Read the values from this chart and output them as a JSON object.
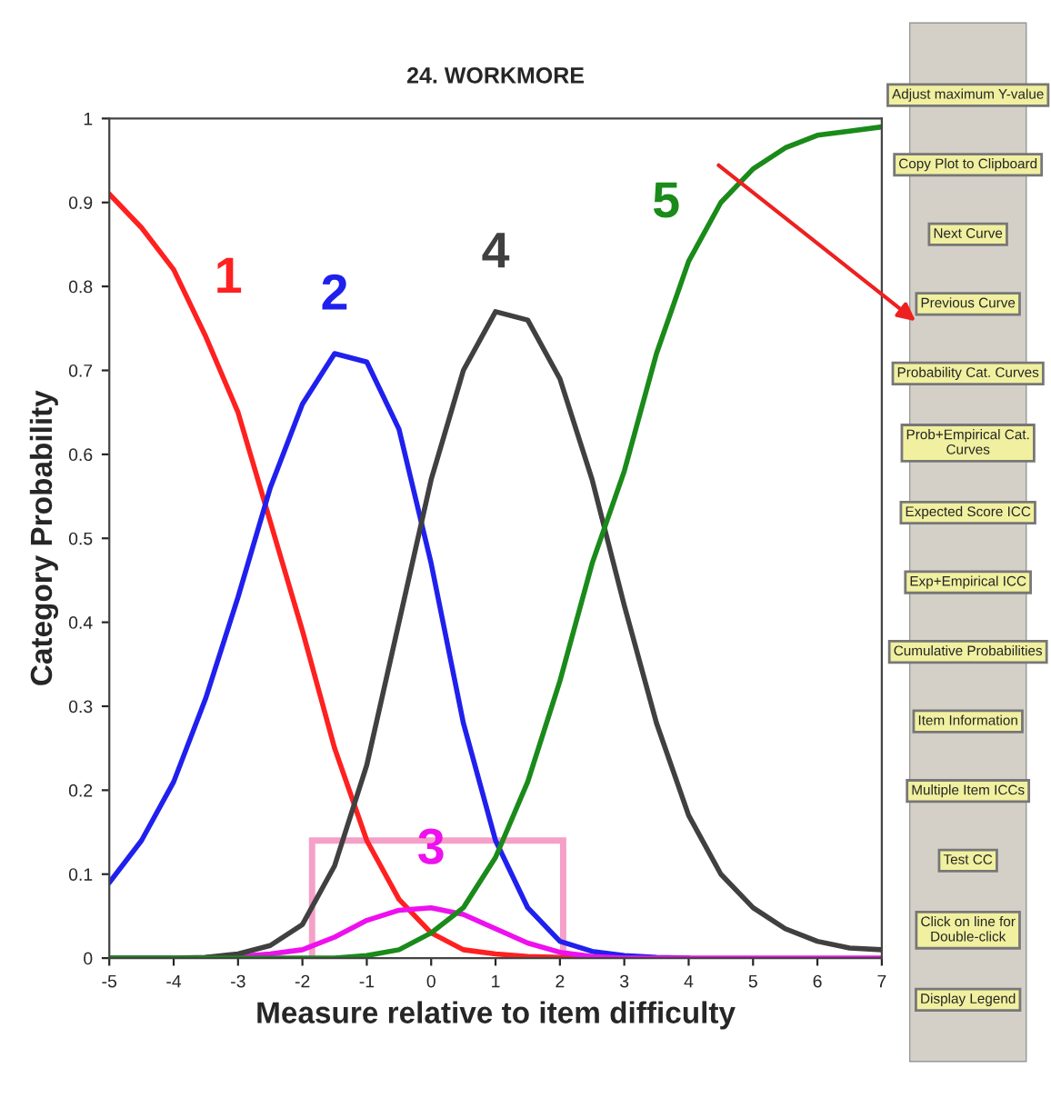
{
  "chart_data": {
    "type": "line",
    "title": "24. WORKMORE",
    "xlabel": "Measure relative to item difficulty",
    "ylabel": "Category Probability",
    "x": [
      -5,
      -4.5,
      -4,
      -3.5,
      -3,
      -2.5,
      -2,
      -1.5,
      -1,
      -0.5,
      0,
      0.5,
      1,
      1.5,
      2,
      2.5,
      3,
      3.5,
      4,
      4.5,
      5,
      5.5,
      6,
      6.5,
      7
    ],
    "series": [
      {
        "name": "1",
        "color": "#ff2020",
        "values": [
          0.91,
          0.87,
          0.82,
          0.74,
          0.65,
          0.52,
          0.39,
          0.25,
          0.14,
          0.07,
          0.03,
          0.01,
          0.005,
          0.002,
          0.001,
          0,
          0,
          null,
          null,
          null,
          null,
          null,
          null,
          null,
          null
        ]
      },
      {
        "name": "2",
        "color": "#2020ee",
        "values": [
          0.09,
          0.14,
          0.21,
          0.31,
          0.43,
          0.56,
          0.66,
          0.72,
          0.71,
          0.63,
          0.47,
          0.28,
          0.14,
          0.06,
          0.02,
          0.008,
          0.003,
          0.001,
          0,
          null,
          null,
          null,
          null,
          null,
          null
        ]
      },
      {
        "name": "3",
        "color": "#ee10ee",
        "values": [
          null,
          null,
          null,
          0.001,
          0.002,
          0.005,
          0.01,
          0.025,
          0.045,
          0.057,
          0.06,
          0.052,
          0.035,
          0.018,
          0.007,
          0.002,
          0,
          0,
          0,
          0,
          0,
          0,
          0,
          0,
          0
        ]
      },
      {
        "name": "4",
        "color": "#404040",
        "values": [
          0,
          0,
          0,
          0.001,
          0.005,
          0.015,
          0.04,
          0.11,
          0.23,
          0.4,
          0.57,
          0.7,
          0.77,
          0.76,
          0.69,
          0.57,
          0.42,
          0.28,
          0.17,
          0.1,
          0.06,
          0.035,
          0.02,
          0.012,
          0.01
        ]
      },
      {
        "name": "5",
        "color": "#1a8a1a",
        "values": [
          0,
          0,
          0,
          0,
          0,
          0,
          0,
          0,
          0.003,
          0.01,
          0.03,
          0.06,
          0.12,
          0.21,
          0.33,
          0.47,
          0.58,
          0.72,
          0.83,
          0.9,
          0.94,
          0.965,
          0.98,
          0.985,
          0.99
        ]
      }
    ],
    "xlim": [
      -5,
      7
    ],
    "xticks": [
      -5,
      -4,
      -3,
      -2,
      -1,
      0,
      1,
      2,
      3,
      4,
      5,
      6,
      7
    ],
    "ylim": [
      0,
      1
    ],
    "yticks": [
      0,
      0.1,
      0.2,
      0.3,
      0.4,
      0.5,
      0.6,
      0.7,
      0.8,
      0.9,
      1
    ],
    "grid": false,
    "legend": false,
    "annotations": [
      "Adjust maximum Y-value",
      "Copy Plot to Clipboard",
      "Next Curve",
      "Previous Curve",
      "Probability Cat. Curves",
      "Prob+Empirical Cat. Curves",
      "Expected Score ICC",
      "Exp+Empirical ICC",
      "Cumulative Probabilities",
      "Item Information",
      "Multiple Item ICCs",
      "Test CC",
      "Click on line for Double-click",
      "Display Legend"
    ]
  }
}
